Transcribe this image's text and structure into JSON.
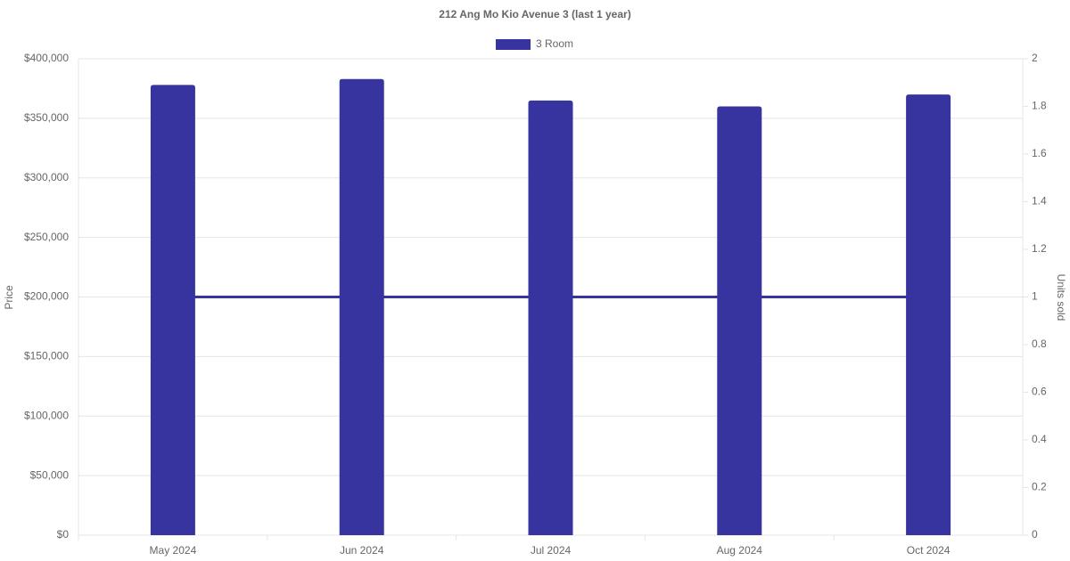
{
  "chart_data": {
    "type": "bar",
    "title": "212 Ang Mo Kio Avenue 3 (last 1 year)",
    "categories": [
      "May 2024",
      "Jun 2024",
      "Jul 2024",
      "Aug 2024",
      "Oct 2024"
    ],
    "series": [
      {
        "name": "3 Room",
        "color": "#3734a0",
        "values": [
          378000,
          383000,
          365000,
          360000,
          370000
        ]
      },
      {
        "type": "line",
        "axis": "y2",
        "color": "#3734a0",
        "values": [
          1,
          1,
          1,
          1,
          1
        ]
      }
    ],
    "y_label": "Price",
    "y2_label": "Units sold",
    "ylim": [
      0,
      400000
    ],
    "yticks": [
      {
        "value": 0,
        "label": "$0"
      },
      {
        "value": 50000,
        "label": "$50,000"
      },
      {
        "value": 100000,
        "label": "$100,000"
      },
      {
        "value": 150000,
        "label": "$150,000"
      },
      {
        "value": 200000,
        "label": "$200,000"
      },
      {
        "value": 250000,
        "label": "$250,000"
      },
      {
        "value": 300000,
        "label": "$300,000"
      },
      {
        "value": 350000,
        "label": "$350,000"
      },
      {
        "value": 400000,
        "label": "$400,000"
      }
    ],
    "y2lim": [
      0,
      2
    ],
    "y2ticks": [
      0,
      0.2,
      0.4,
      0.6,
      0.8,
      1,
      1.2,
      1.4,
      1.6,
      1.8,
      2
    ],
    "grid": true,
    "legend": "top"
  }
}
